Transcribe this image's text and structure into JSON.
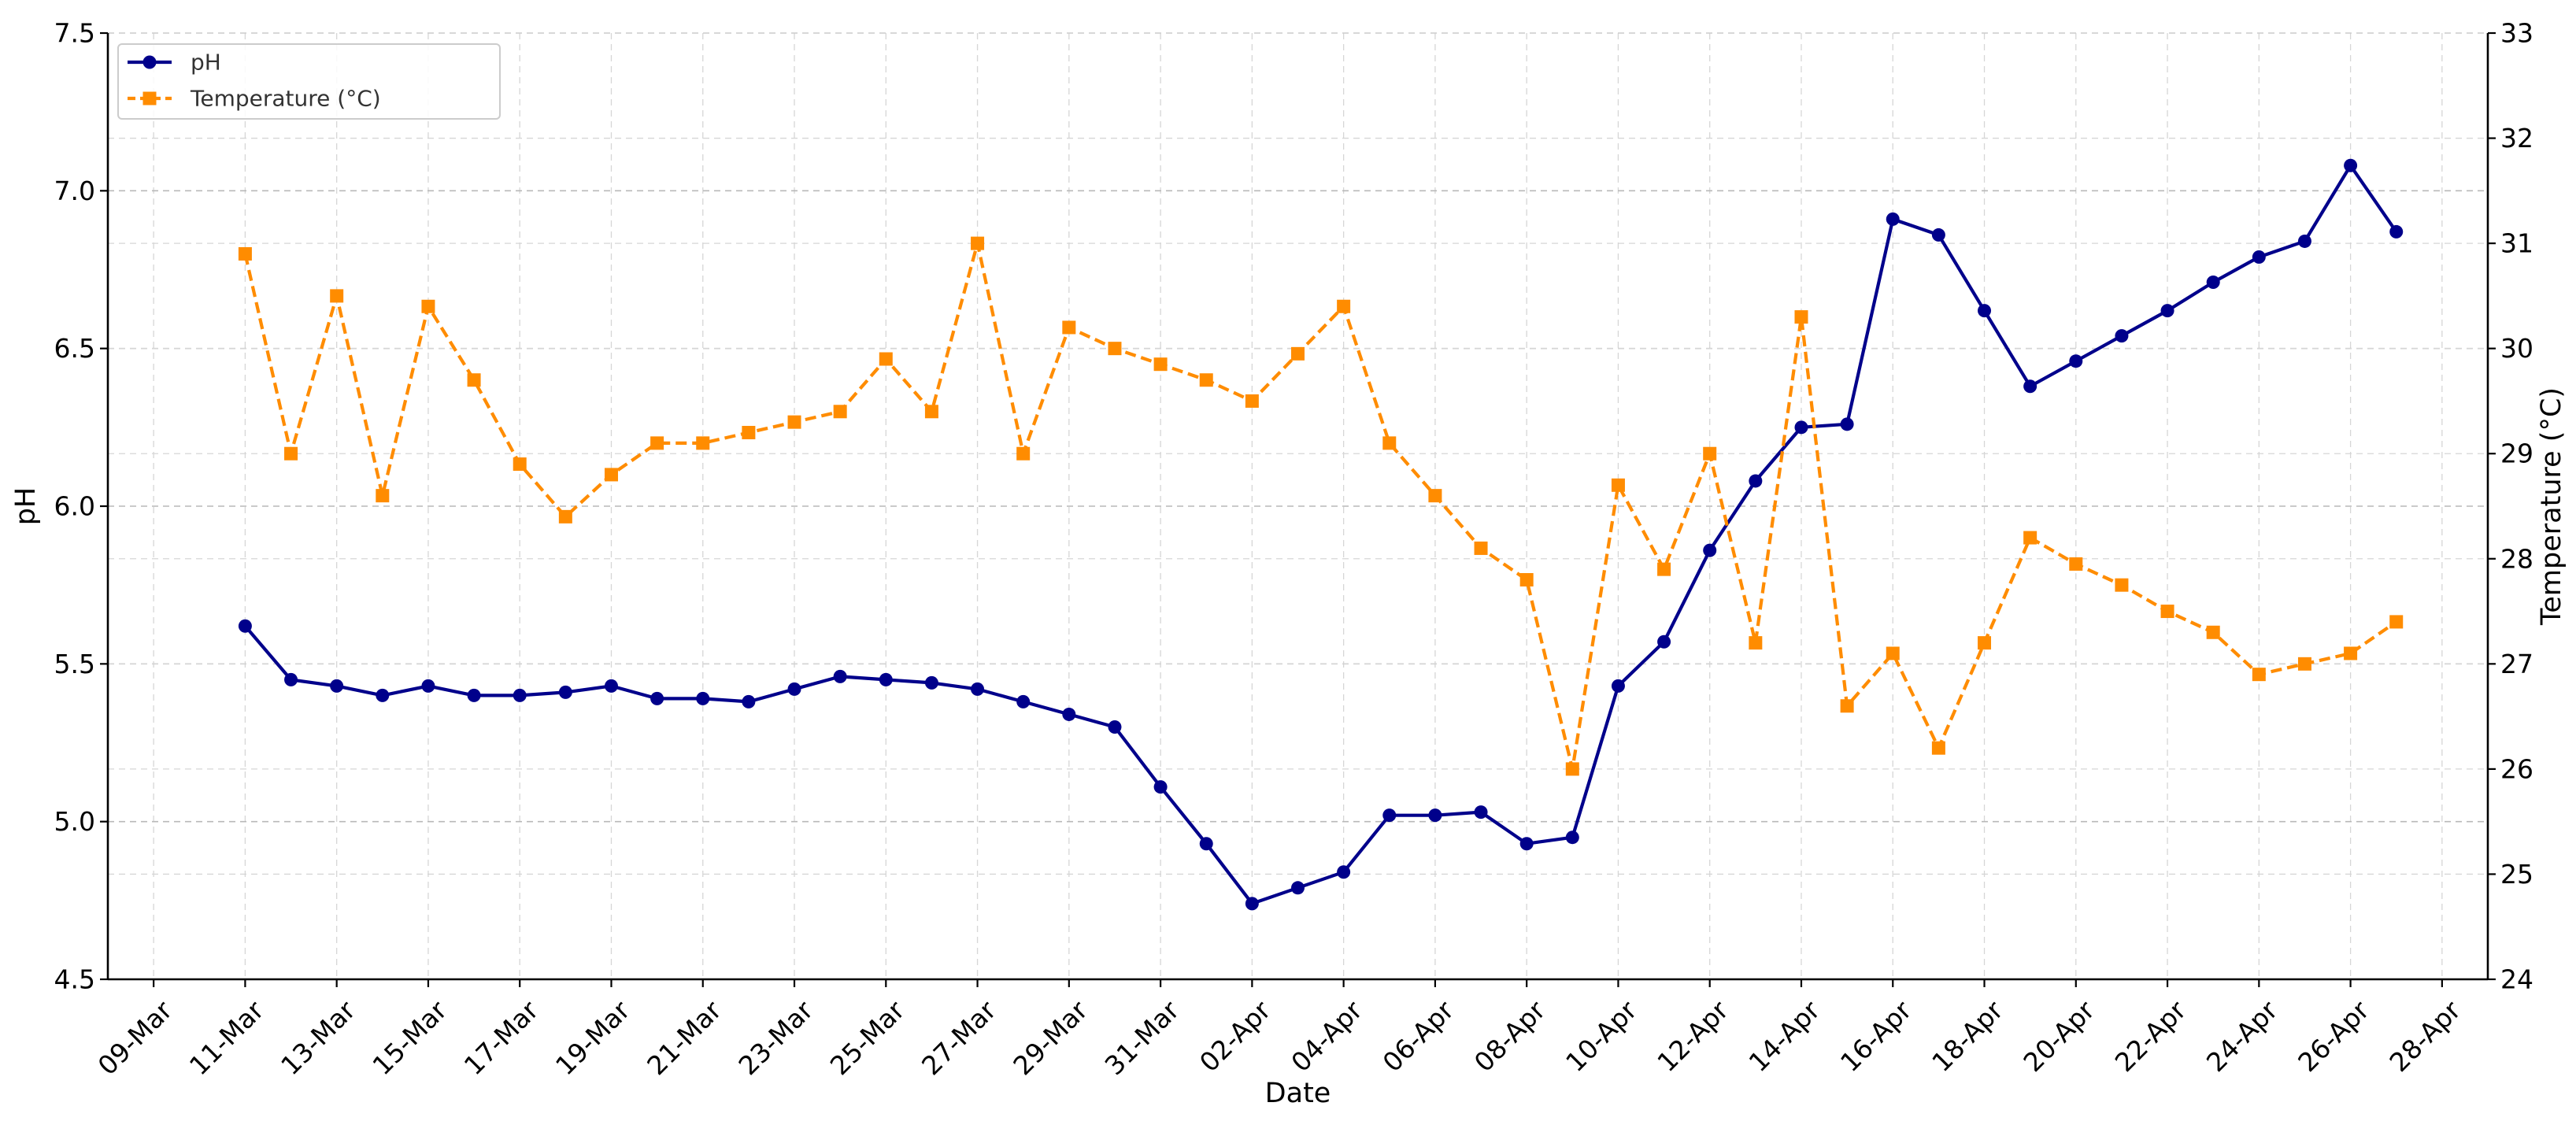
{
  "chart_data": {
    "type": "line",
    "xlabel": "Date",
    "ylabel_left": "pH",
    "ylabel_right": "Temperature (°C)",
    "x_range": [
      "2024-03-08",
      "2024-04-29"
    ],
    "x_ticks": [
      "2024-03-09",
      "2024-03-11",
      "2024-03-13",
      "2024-03-15",
      "2024-03-17",
      "2024-03-19",
      "2024-03-21",
      "2024-03-23",
      "2024-03-25",
      "2024-03-27",
      "2024-03-29",
      "2024-03-31",
      "2024-04-02",
      "2024-04-04",
      "2024-04-06",
      "2024-04-08",
      "2024-04-10",
      "2024-04-12",
      "2024-04-14",
      "2024-04-16",
      "2024-04-18",
      "2024-04-20",
      "2024-04-22",
      "2024-04-24",
      "2024-04-26",
      "2024-04-28"
    ],
    "x_tick_labels": [
      "09-Mar",
      "11-Mar",
      "13-Mar",
      "15-Mar",
      "17-Mar",
      "19-Mar",
      "21-Mar",
      "23-Mar",
      "25-Mar",
      "27-Mar",
      "29-Mar",
      "31-Mar",
      "02-Apr",
      "04-Apr",
      "06-Apr",
      "08-Apr",
      "10-Apr",
      "12-Apr",
      "14-Apr",
      "16-Apr",
      "18-Apr",
      "20-Apr",
      "22-Apr",
      "24-Apr",
      "26-Apr",
      "28-Apr"
    ],
    "ylim_left": [
      4.5,
      7.5
    ],
    "ylim_right": [
      24,
      33
    ],
    "y_ticks_left": [
      "4.5",
      "5.0",
      "5.5",
      "6.0",
      "6.5",
      "7.0",
      "7.5"
    ],
    "y_ticks_right": [
      "24",
      "25",
      "26",
      "27",
      "28",
      "29",
      "30",
      "31",
      "32",
      "33"
    ],
    "grid": true,
    "legend_position": "top-left",
    "dates": [
      "2024-03-11",
      "2024-03-12",
      "2024-03-13",
      "2024-03-14",
      "2024-03-15",
      "2024-03-16",
      "2024-03-17",
      "2024-03-18",
      "2024-03-19",
      "2024-03-20",
      "2024-03-21",
      "2024-03-22",
      "2024-03-23",
      "2024-03-24",
      "2024-03-25",
      "2024-03-26",
      "2024-03-27",
      "2024-03-28",
      "2024-03-29",
      "2024-03-30",
      "2024-03-31",
      "2024-04-01",
      "2024-04-02",
      "2024-04-03",
      "2024-04-04",
      "2024-04-05",
      "2024-04-06",
      "2024-04-07",
      "2024-04-08",
      "2024-04-09",
      "2024-04-10",
      "2024-04-11",
      "2024-04-12",
      "2024-04-13",
      "2024-04-14",
      "2024-04-15",
      "2024-04-16",
      "2024-04-17",
      "2024-04-18",
      "2024-04-19",
      "2024-04-20",
      "2024-04-21",
      "2024-04-22",
      "2024-04-23",
      "2024-04-24",
      "2024-04-25",
      "2024-04-26",
      "2024-04-27"
    ],
    "series": [
      {
        "name": "pH",
        "axis": "left",
        "color": "#00008B",
        "marker": "circle",
        "line_style": "solid",
        "values": [
          5.62,
          5.45,
          5.43,
          5.4,
          5.43,
          5.4,
          5.4,
          5.41,
          5.43,
          5.39,
          5.39,
          5.38,
          5.42,
          5.46,
          5.45,
          5.44,
          5.42,
          5.38,
          5.34,
          5.3,
          5.11,
          4.93,
          4.74,
          4.79,
          4.84,
          5.02,
          5.02,
          5.03,
          4.93,
          4.95,
          5.43,
          5.57,
          5.86,
          6.08,
          6.25,
          6.26,
          6.91,
          6.86,
          6.62,
          6.38,
          6.46,
          6.54,
          6.62,
          6.71,
          6.79,
          6.84,
          7.08,
          6.87
        ]
      },
      {
        "name": "Temperature (°C)",
        "axis": "right",
        "color": "#FF8C00",
        "marker": "square",
        "line_style": "dashed",
        "values": [
          30.9,
          29.0,
          30.5,
          28.6,
          30.4,
          29.7,
          28.9,
          28.4,
          28.8,
          29.1,
          29.1,
          29.2,
          29.3,
          29.4,
          29.9,
          29.4,
          31.0,
          29.0,
          30.2,
          30.0,
          29.85,
          29.7,
          29.5,
          29.95,
          30.4,
          29.1,
          28.6,
          28.1,
          27.8,
          26.0,
          28.7,
          27.9,
          29.0,
          27.2,
          30.3,
          26.6,
          27.1,
          26.2,
          27.2,
          28.2,
          27.95,
          27.75,
          27.5,
          27.3,
          26.9,
          27.0,
          27.1,
          27.4
        ]
      }
    ]
  }
}
